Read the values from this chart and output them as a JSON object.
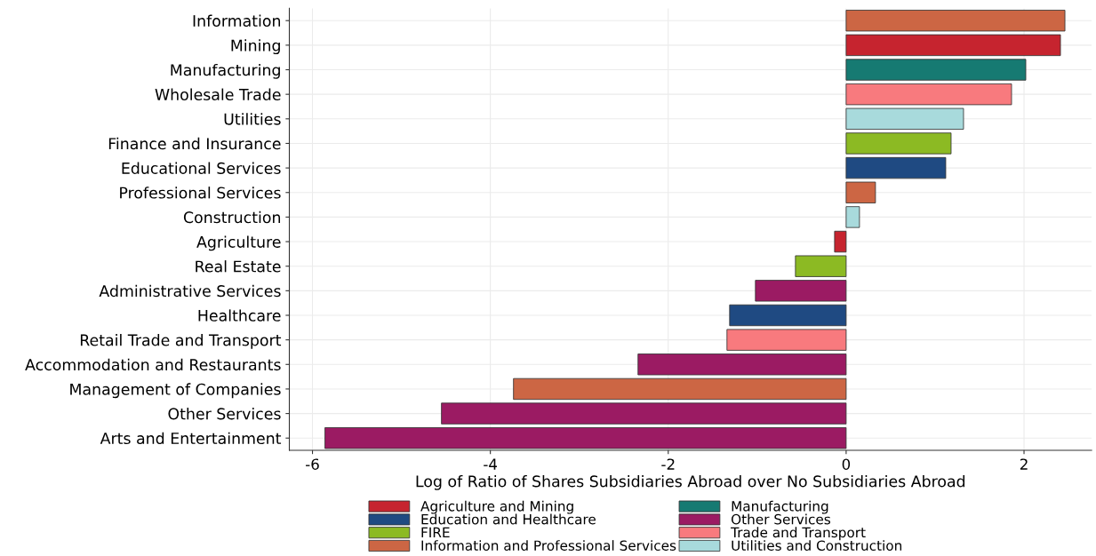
{
  "chart_data": {
    "type": "bar",
    "orientation": "horizontal",
    "xlabel": "Log of Ratio of Shares Subsidiaries Abroad over No Subsidiaries Abroad",
    "categories": [
      "Information",
      "Mining",
      "Manufacturing",
      "Wholesale Trade",
      "Utilities",
      "Finance and Insurance",
      "Educational Services",
      "Professional Services",
      "Construction",
      "Agriculture",
      "Real Estate",
      "Administrative Services",
      "Healthcare",
      "Retail Trade and Transport",
      "Accommodation and Restaurants",
      "Management of Companies",
      "Other Services",
      "Arts and Entertainment"
    ],
    "series": [
      {
        "name": "Agriculture and Mining",
        "color": "#c6242f",
        "values": [
          null,
          2.41,
          null,
          null,
          null,
          null,
          null,
          null,
          null,
          -0.13,
          null,
          null,
          null,
          null,
          null,
          null,
          null,
          null
        ]
      },
      {
        "name": "Education and Healthcare",
        "color": "#1f4a82",
        "values": [
          null,
          null,
          null,
          null,
          null,
          null,
          1.12,
          null,
          null,
          null,
          null,
          null,
          -1.31,
          null,
          null,
          null,
          null,
          null
        ]
      },
      {
        "name": "FIRE",
        "color": "#8cba23",
        "values": [
          null,
          null,
          null,
          null,
          null,
          1.18,
          null,
          null,
          null,
          null,
          -0.57,
          null,
          null,
          null,
          null,
          null,
          null,
          null
        ]
      },
      {
        "name": "Information and Professional Services",
        "color": "#cc6644",
        "values": [
          2.46,
          null,
          null,
          null,
          null,
          null,
          null,
          0.33,
          null,
          null,
          null,
          null,
          null,
          null,
          null,
          -3.74,
          null,
          null
        ]
      },
      {
        "name": "Manufacturing",
        "color": "#167a72",
        "values": [
          null,
          null,
          2.02,
          null,
          null,
          null,
          null,
          null,
          null,
          null,
          null,
          null,
          null,
          null,
          null,
          null,
          null,
          null
        ]
      },
      {
        "name": "Other Services",
        "color": "#9b1b63",
        "values": [
          null,
          null,
          null,
          null,
          null,
          null,
          null,
          null,
          null,
          null,
          null,
          -1.02,
          null,
          null,
          -2.34,
          null,
          -4.55,
          -5.86
        ]
      },
      {
        "name": "Trade and Transport",
        "color": "#f87a7e",
        "values": [
          null,
          null,
          null,
          1.86,
          null,
          null,
          null,
          null,
          null,
          null,
          null,
          null,
          null,
          -1.34,
          null,
          null,
          null,
          null
        ]
      },
      {
        "name": "Utilities and Construction",
        "color": "#a8dadc",
        "values": [
          null,
          null,
          null,
          null,
          1.32,
          null,
          null,
          null,
          0.15,
          null,
          null,
          null,
          null,
          null,
          null,
          null,
          null,
          null
        ]
      }
    ],
    "xlim": [
      -6.26,
      2.76
    ],
    "xticks": [
      {
        "value": -6,
        "label": "-6"
      },
      {
        "value": -4,
        "label": "-4"
      },
      {
        "value": -2,
        "label": "-2"
      },
      0,
      2
    ],
    "grid": true,
    "legend": "bottom"
  }
}
